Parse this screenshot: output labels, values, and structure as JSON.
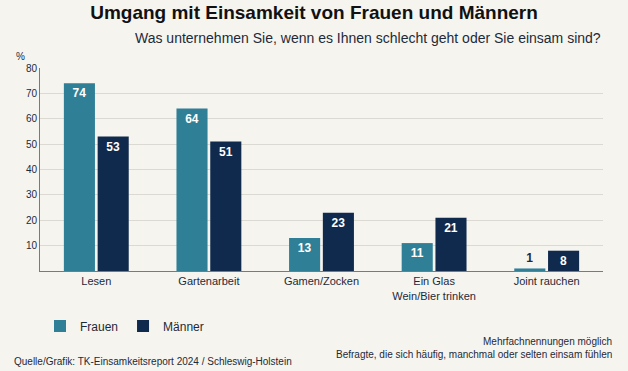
{
  "chart_data": {
    "type": "bar",
    "title": "Umgang mit Einsamkeit von Frauen und Männern",
    "subtitle": "Was unternehmen Sie, wenn es Ihnen schlecht geht oder Sie einsam sind?",
    "y_label": "%",
    "categories": [
      "Lesen",
      "Gartenarbeit",
      "Gamen/Zocken",
      "Ein Glas Wein/Bier trinken",
      "Joint rauchen"
    ],
    "series": [
      {
        "name": "Frauen",
        "color": "#2f7f97",
        "values": [
          74,
          64,
          13,
          11,
          1
        ]
      },
      {
        "name": "Männer",
        "color": "#0f2a4d",
        "values": [
          53,
          51,
          23,
          21,
          8
        ]
      }
    ],
    "ylim": [
      0,
      80
    ],
    "yticks": [
      10,
      20,
      30,
      40,
      50,
      60,
      70,
      80
    ],
    "grid": true,
    "legend": "bottom left",
    "data_labels": true,
    "source": "Quelle/Grafik: TK-Einsamkeitsreport 2024 / Schleswig-Holstein",
    "notes": [
      "Mehrfachnennungen möglich",
      "Befragte, die sich häufig, manchmal oder selten einsam fühlen"
    ]
  }
}
